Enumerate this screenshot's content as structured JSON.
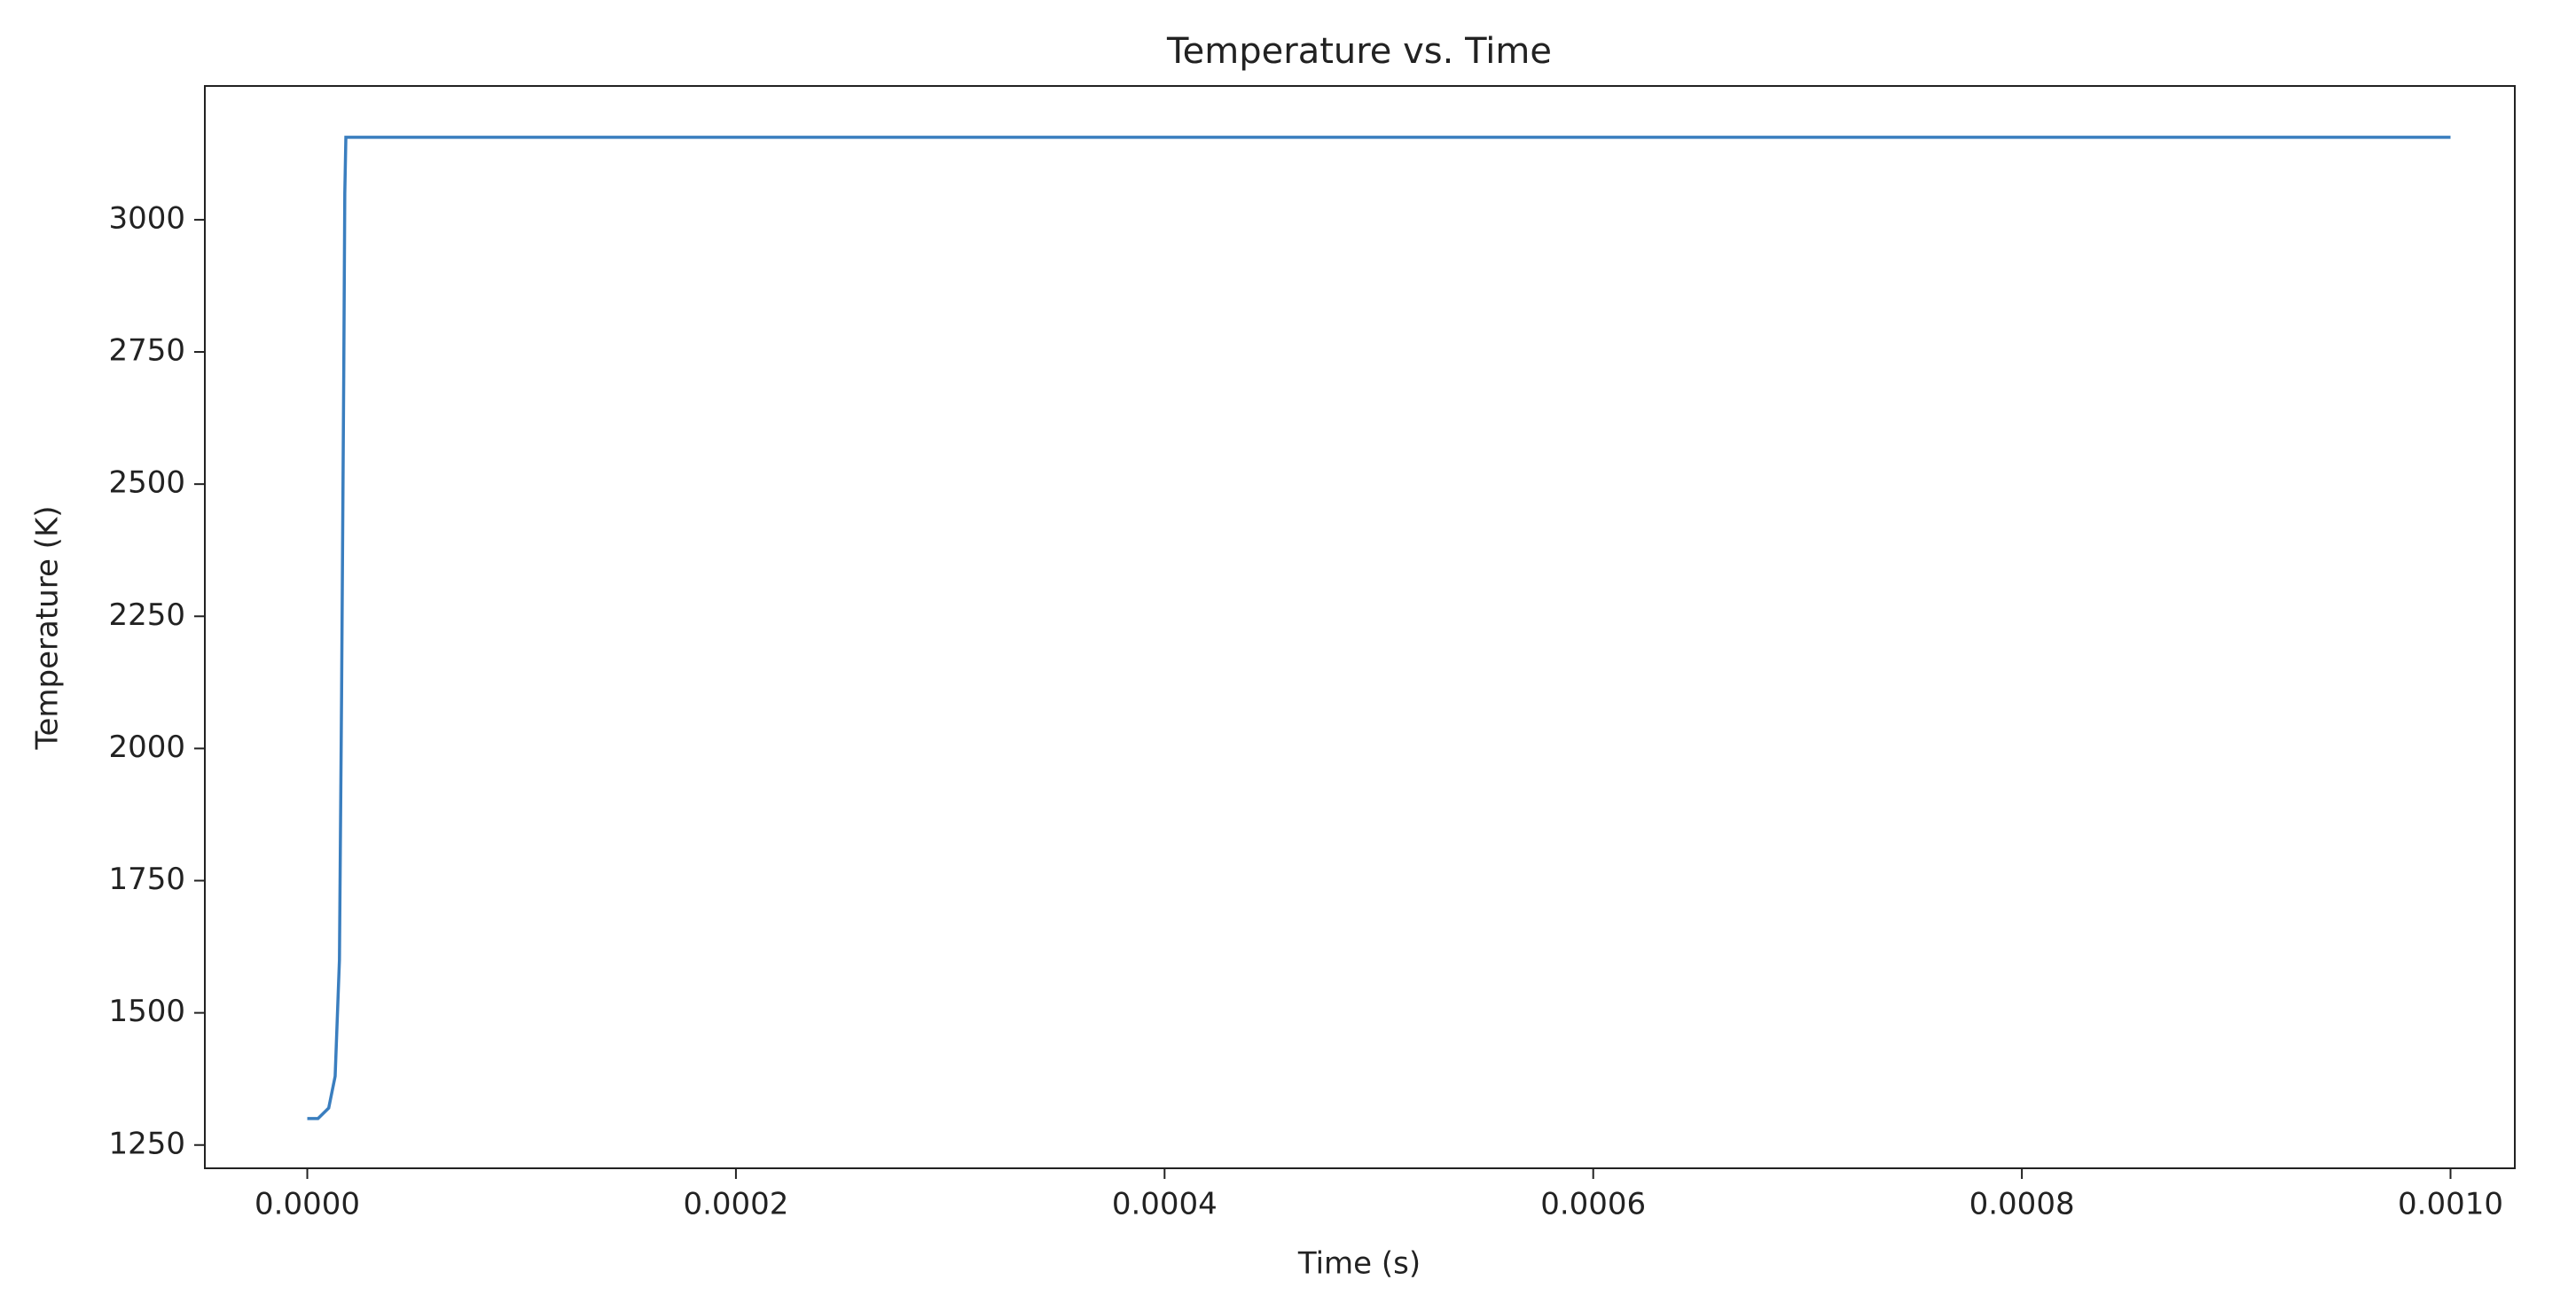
{
  "chart_data": {
    "type": "line",
    "title": "Temperature vs. Time",
    "x_label": "Time (s)",
    "y_label": "Temperature (K)",
    "x": [
      0,
      5e-06,
      1e-05,
      1.3e-05,
      1.5e-05,
      1.6e-05,
      1.7e-05,
      1.75e-05,
      1.8e-05,
      3e-05,
      0.001
    ],
    "values": [
      1300,
      1300,
      1320,
      1380,
      1600,
      2100,
      2700,
      3050,
      3156,
      3156,
      3156
    ],
    "color": "#3a7ebf",
    "xlim": [
      -4.78e-05,
      0.00103
    ],
    "ylim": [
      1206,
      3253
    ],
    "xticks": [
      {
        "value": 0,
        "label": "0.0000"
      },
      {
        "value": 0.0002,
        "label": "0.0002"
      },
      {
        "value": 0.0004,
        "label": "0.0004"
      },
      {
        "value": 0.0006,
        "label": "0.0006"
      },
      {
        "value": 0.0008,
        "label": "0.0008"
      },
      {
        "value": 0.001,
        "label": "0.0010"
      }
    ],
    "yticks": [
      1250,
      1500,
      1750,
      2000,
      2250,
      2500,
      2750,
      3000
    ]
  }
}
